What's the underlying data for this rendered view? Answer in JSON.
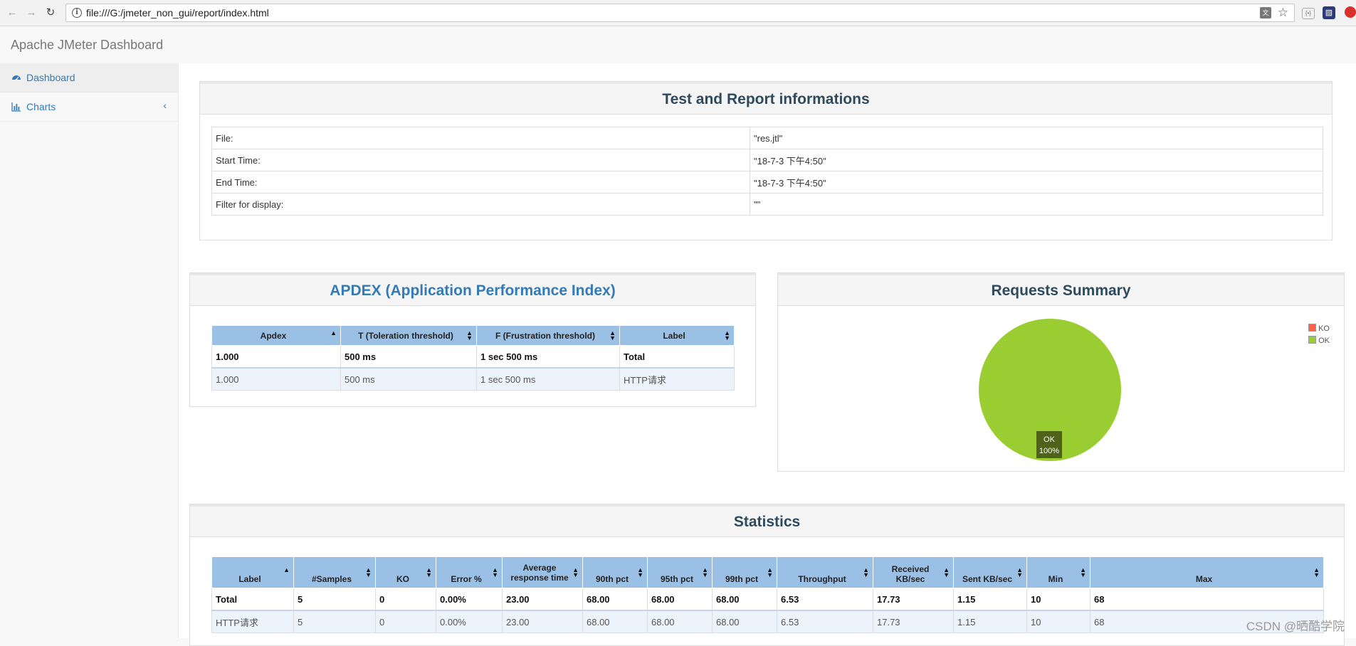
{
  "browser": {
    "url": "file:///G:/jmeter_non_gui/report/index.html"
  },
  "app": {
    "title": "Apache JMeter Dashboard"
  },
  "sidebar": {
    "items": [
      {
        "label": "Dashboard",
        "icon": "dashboard-icon",
        "active": true
      },
      {
        "label": "Charts",
        "icon": "bar-chart-icon",
        "active": false
      }
    ]
  },
  "info": {
    "title": "Test and Report informations",
    "rows": [
      {
        "key": "File:",
        "value": "\"res.jtl\""
      },
      {
        "key": "Start Time:",
        "value": "\"18-7-3 下午4:50\""
      },
      {
        "key": "End Time:",
        "value": "\"18-7-3 下午4:50\""
      },
      {
        "key": "Filter for display:",
        "value": "\"\""
      }
    ]
  },
  "apdex": {
    "title": "APDEX (Application Performance Index)",
    "headers": [
      "Apdex",
      "T (Toleration threshold)",
      "F (Frustration threshold)",
      "Label"
    ],
    "rows": [
      [
        "1.000",
        "500 ms",
        "1 sec 500 ms",
        "Total"
      ],
      [
        "1.000",
        "500 ms",
        "1 sec 500 ms",
        "HTTP请求"
      ]
    ]
  },
  "requests": {
    "title": "Requests Summary",
    "legend": [
      {
        "label": "KO",
        "color": "#ff6347"
      },
      {
        "label": "OK",
        "color": "#9acd32"
      }
    ],
    "slice_label": "OK",
    "slice_percent": "100%",
    "ok_fraction": 1.0
  },
  "chart_data": {
    "type": "pie",
    "title": "Requests Summary",
    "categories": [
      "KO",
      "OK"
    ],
    "values": [
      0,
      100
    ],
    "legend_position": "top-right"
  },
  "statistics": {
    "title": "Statistics",
    "headers": [
      "Label",
      "#Samples",
      "KO",
      "Error %",
      "Average response time",
      "90th pct",
      "95th pct",
      "99th pct",
      "Throughput",
      "Received KB/sec",
      "Sent KB/sec",
      "Min",
      "Max"
    ],
    "rows": [
      [
        "Total",
        "5",
        "0",
        "0.00%",
        "23.00",
        "68.00",
        "68.00",
        "68.00",
        "6.53",
        "17.73",
        "1.15",
        "10",
        "68"
      ],
      [
        "HTTP请求",
        "5",
        "0",
        "0.00%",
        "23.00",
        "68.00",
        "68.00",
        "68.00",
        "6.53",
        "17.73",
        "1.15",
        "10",
        "68"
      ]
    ]
  },
  "watermark": "CSDN @晒酷学院"
}
